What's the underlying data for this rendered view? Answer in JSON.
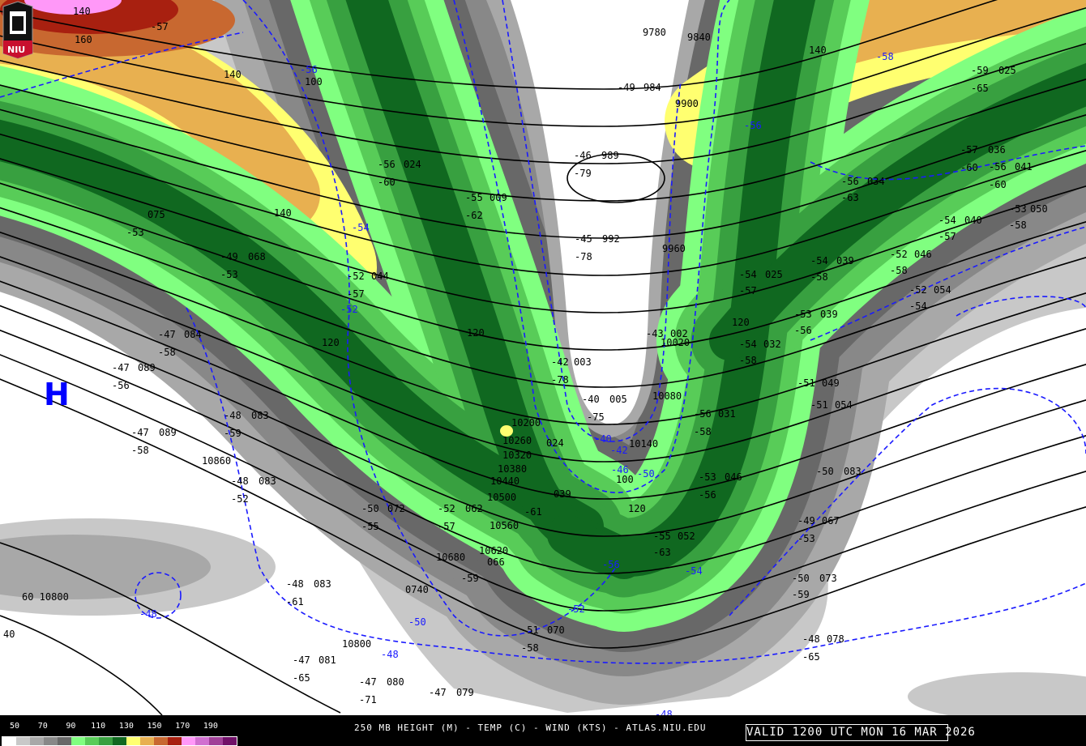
{
  "map": {
    "high_marker": "H",
    "colors": {
      "height_contour": "#000000",
      "isotherm": "#1a1aff",
      "high_marker": "#0000ff"
    },
    "logo_text": "NIU",
    "height_labels": [
      "9780",
      "9840",
      "9900",
      "9960",
      "10020",
      "10080",
      "10140",
      "10200",
      "10260",
      "10320",
      "10380",
      "10440",
      "10500",
      "10560",
      "10620",
      "10680",
      "0740",
      "10800",
      "10860",
      "60 10800",
      "40"
    ],
    "isotherm_labels": [
      "-56",
      "-58",
      "-56",
      "-54",
      "-52",
      "-50",
      "-48",
      "-52",
      "-40",
      "-42",
      "-46",
      "-50",
      "-56",
      "-54",
      "-48",
      "-48",
      "-57"
    ],
    "isotach_labels": [
      "140",
      "160",
      "140",
      "100",
      "140",
      "120",
      "120",
      "120",
      "100",
      "120",
      "140"
    ],
    "stations": [
      {
        "temp": "-47",
        "hgt": "084",
        "dew": "-58"
      },
      {
        "temp": "-47",
        "hgt": "089",
        "dew": "-56"
      },
      {
        "temp": "-47",
        "hgt": "089",
        "dew": "-58"
      },
      {
        "temp": "-48",
        "hgt": "083",
        "dew": "-59"
      },
      {
        "temp": "-48",
        "hgt": "083",
        "dew": "-52"
      },
      {
        "temp": "-48",
        "hgt": "083",
        "dew": "-61"
      },
      {
        "temp": "-47",
        "hgt": "081",
        "dew": "-65"
      },
      {
        "temp": "-47",
        "hgt": "080",
        "dew": "-71"
      },
      {
        "temp": "-49",
        "hgt": "068",
        "dew": "-53"
      },
      {
        "temp": "-49",
        "hgt": "075",
        "dew": "-53"
      },
      {
        "temp": "-50",
        "hgt": "072",
        "dew": "-55"
      },
      {
        "temp": "-52",
        "hgt": "062",
        "dew": "-57"
      },
      {
        "temp": "-53",
        "hgt": "066",
        "dew": "-59"
      },
      {
        "temp": "-51",
        "hgt": "070",
        "dew": "-58"
      },
      {
        "temp": "-47",
        "hgt": "079",
        "dew": ""
      },
      {
        "temp": "-56",
        "hgt": "024",
        "dew": "-60"
      },
      {
        "temp": "-55",
        "hgt": "009",
        "dew": "-62"
      },
      {
        "temp": "-52",
        "hgt": "044",
        "dew": "-57"
      },
      {
        "temp": "-46",
        "hgt": "989",
        "dew": "-79"
      },
      {
        "temp": "-45",
        "hgt": "992",
        "dew": "-78"
      },
      {
        "temp": "-49",
        "hgt": "984",
        "dew": ""
      },
      {
        "temp": "-43",
        "hgt": "002",
        "dew": ""
      },
      {
        "temp": "-42",
        "hgt": "003",
        "dew": "-78"
      },
      {
        "temp": "-40",
        "hgt": "005",
        "dew": "-75"
      },
      {
        "temp": "-50",
        "hgt": "024",
        "dew": "-59"
      },
      {
        "temp": "-56",
        "hgt": "039",
        "dew": "-61"
      },
      {
        "temp": "-55",
        "hgt": "052",
        "dew": "-63"
      },
      {
        "temp": "-53",
        "hgt": "046",
        "dew": "-56"
      },
      {
        "temp": "-50",
        "hgt": "083",
        "dew": ""
      },
      {
        "temp": "-49",
        "hgt": "067",
        "dew": "-53"
      },
      {
        "temp": "-50",
        "hgt": "073",
        "dew": "-59"
      },
      {
        "temp": "-48",
        "hgt": "078",
        "dew": "-65"
      },
      {
        "temp": "-59",
        "hgt": "025",
        "dew": "-65"
      },
      {
        "temp": "-57",
        "hgt": "036",
        "dew": "-60"
      },
      {
        "temp": "-56",
        "hgt": "041",
        "dew": "-60"
      },
      {
        "temp": "-56",
        "hgt": "034",
        "dew": "-63"
      },
      {
        "temp": "-54",
        "hgt": "040",
        "dew": "-57"
      },
      {
        "temp": "-53",
        "hgt": "050",
        "dew": "-58"
      },
      {
        "temp": "-54",
        "hgt": "039",
        "dew": "-58"
      },
      {
        "temp": "-52",
        "hgt": "046",
        "dew": "-58"
      },
      {
        "temp": "-53",
        "hgt": "039",
        "dew": "-56"
      },
      {
        "temp": "-54",
        "hgt": "025",
        "dew": "-57"
      },
      {
        "temp": "-54",
        "hgt": "032",
        "dew": "-58"
      },
      {
        "temp": "-51",
        "hgt": "049",
        "dew": ""
      },
      {
        "temp": "-51",
        "hgt": "054",
        "dew": ""
      },
      {
        "temp": "-52",
        "hgt": "054",
        "dew": "-54"
      },
      {
        "temp": "-58",
        "hgt": "025",
        "dew": "-62"
      },
      {
        "temp": "-56",
        "hgt": "031",
        "dew": "-58"
      }
    ]
  },
  "legend": {
    "labels": [
      "50",
      "70",
      "90",
      "110",
      "130",
      "150",
      "170",
      "190"
    ],
    "colors": [
      "#ffffff",
      "#c8c8c8",
      "#a8a8a8",
      "#888888",
      "#686868",
      "#80ff80",
      "#58cc58",
      "#38a040",
      "#106820",
      "#ffff70",
      "#e8b050",
      "#c86830",
      "#a82010",
      "#ff98f8",
      "#d070d0",
      "#a04098",
      "#701068"
    ]
  },
  "footer": {
    "title": "250 MB HEIGHT (M) - TEMP (C) - WIND (KTS) - ATLAS.NIU.EDU",
    "valid": "VALID 1200 UTC MON 16 MAR 2026"
  }
}
